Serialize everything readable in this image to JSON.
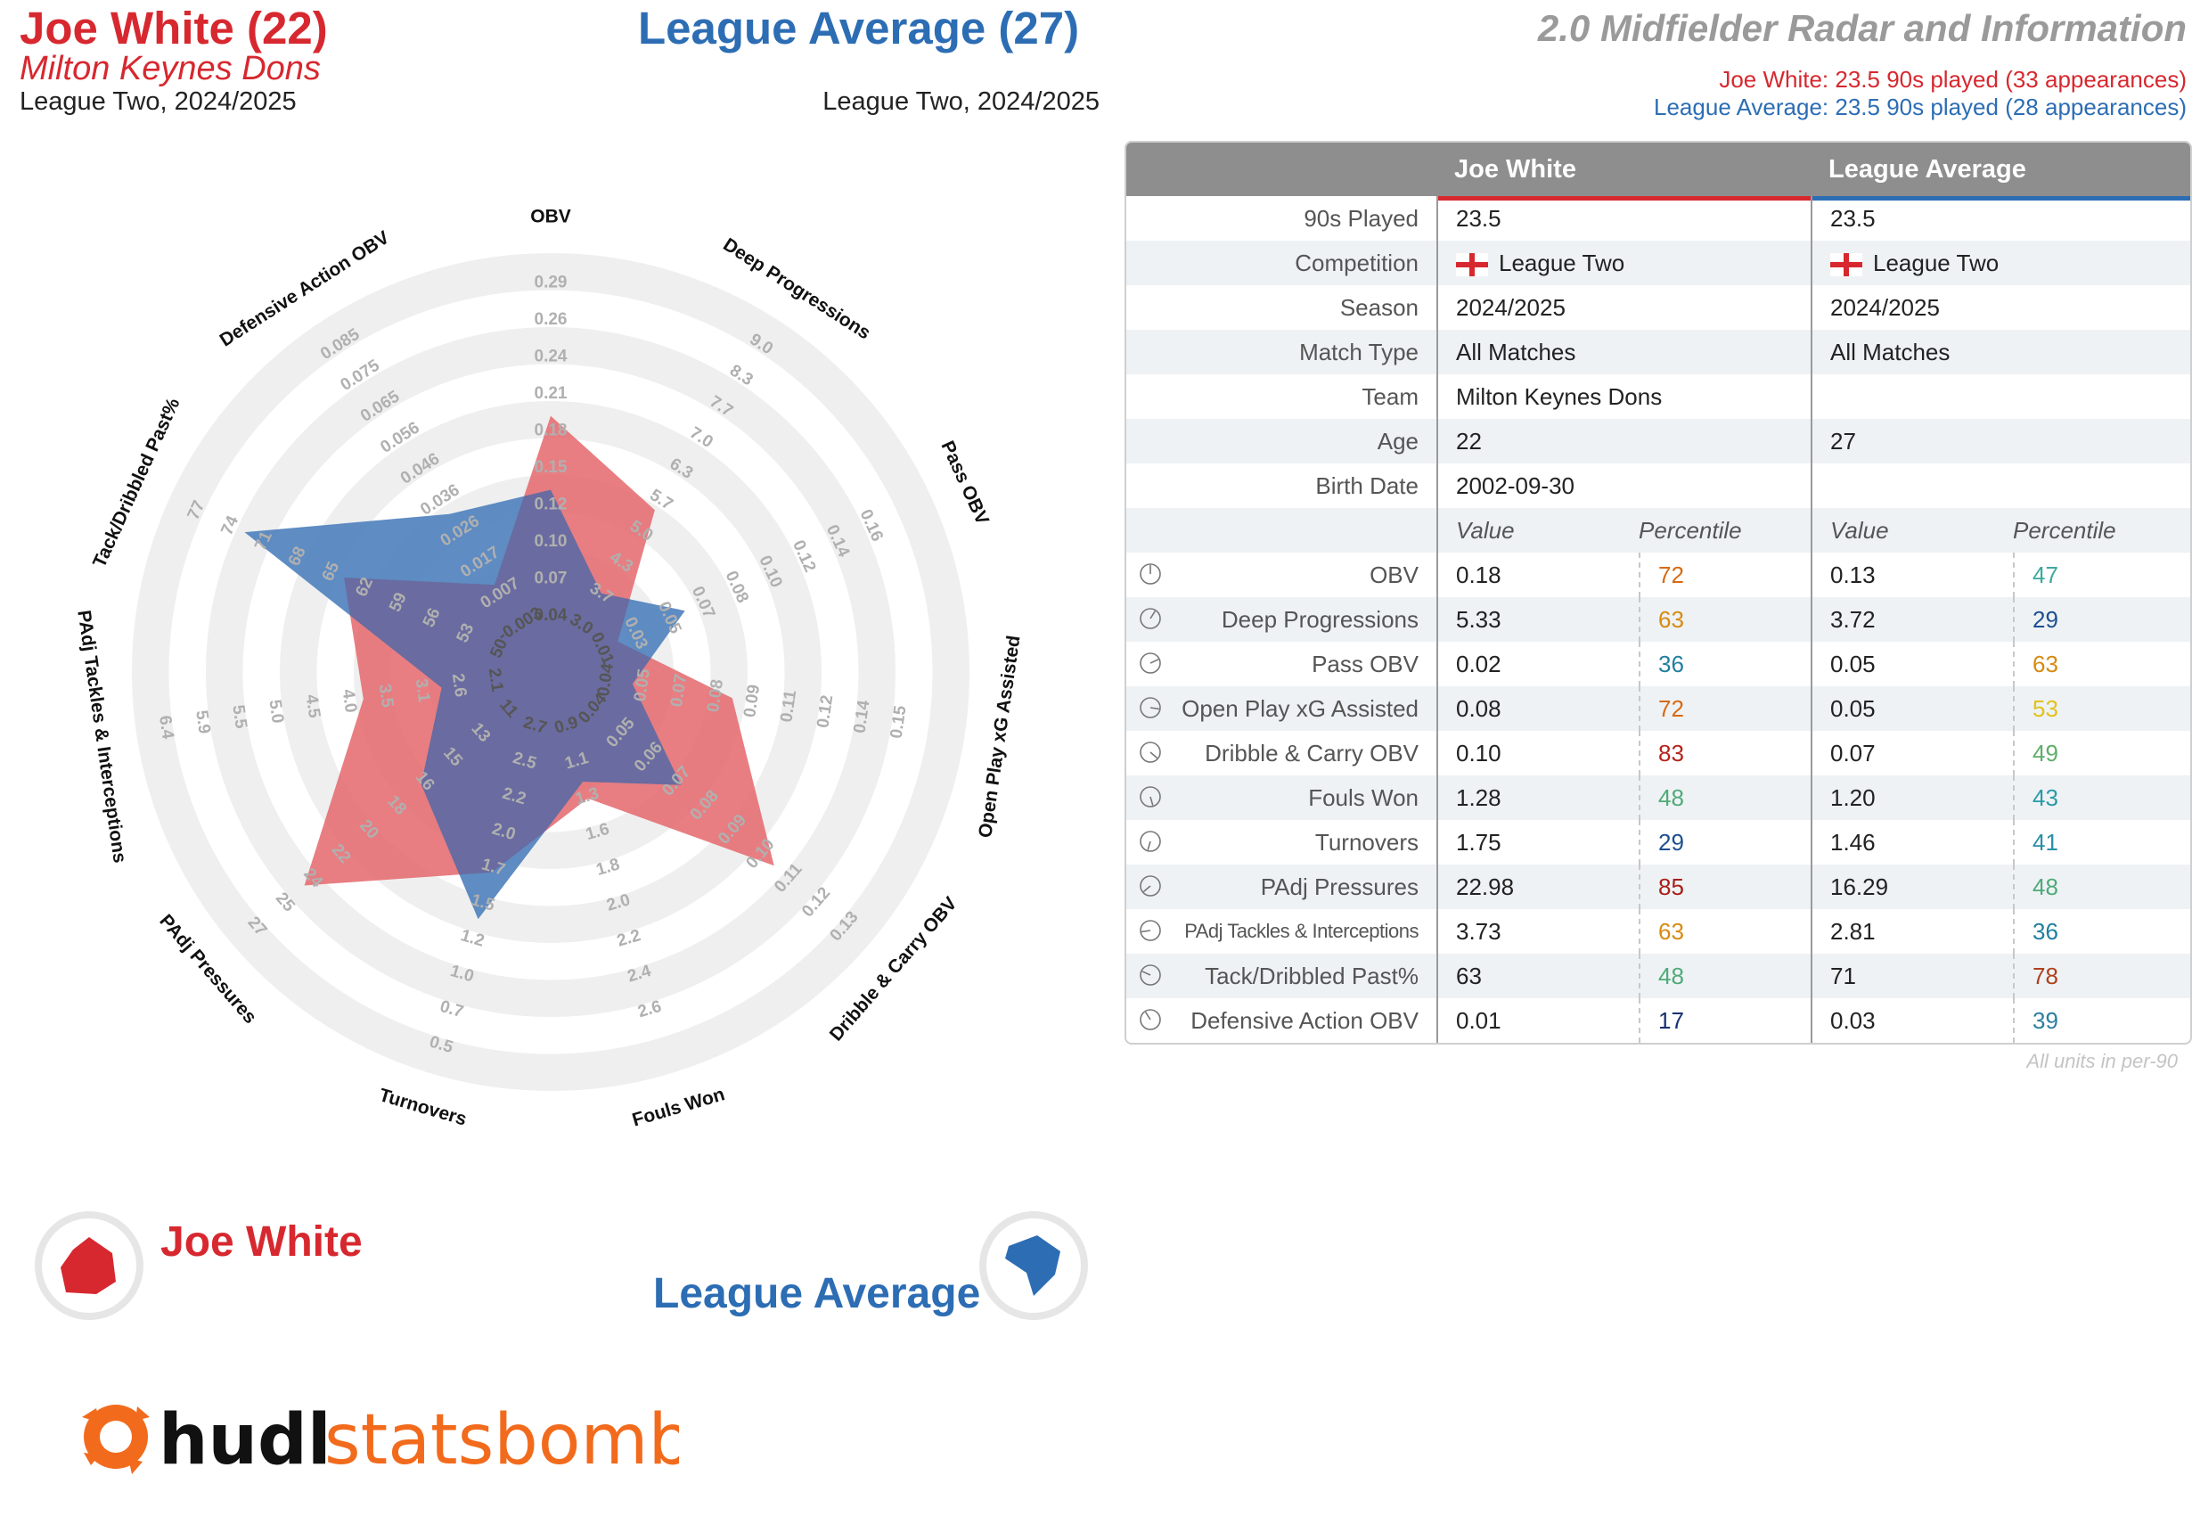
{
  "header": {
    "p1_name": "Joe White (22)",
    "p1_team": "Milton Keynes Dons",
    "p1_comp": "League Two, 2024/2025",
    "p2_name": "League Average (27)",
    "p2_comp": "League Two, 2024/2025",
    "title": "2.0 Midfielder Radar and Information",
    "p1_minutes": "Joe White: 23.5 90s played (33 appearances)",
    "p2_minutes": "League Average: 23.5 90s played (28 appearances)"
  },
  "colors": {
    "p1": "#d7282f",
    "p2": "#2c6db4",
    "p1_fill": "#e4676c",
    "p2_fill": "#4c7fbd",
    "overlap": "#6a6a9e",
    "ring": "#efefef"
  },
  "legend": {
    "p1": "Joe White",
    "p2": "League Average"
  },
  "logo": {
    "hudl": "hudl",
    "statsbomb": "statsbomb"
  },
  "table": {
    "columns": [
      "Joe White",
      "League Average"
    ],
    "info_rows": [
      {
        "label": "90s Played",
        "p1": "23.5",
        "p2": "23.5"
      },
      {
        "label": "Competition",
        "p1": "League Two",
        "p2": "League Two",
        "flag": true
      },
      {
        "label": "Season",
        "p1": "2024/2025",
        "p2": "2024/2025"
      },
      {
        "label": "Match Type",
        "p1": "All Matches",
        "p2": "All Matches"
      },
      {
        "label": "Team",
        "p1": "Milton Keynes Dons",
        "p2": ""
      },
      {
        "label": "Age",
        "p1": "22",
        "p2": "27"
      },
      {
        "label": "Birth Date",
        "p1": "2002-09-30",
        "p2": ""
      }
    ],
    "subheaders": {
      "value": "Value",
      "percentile": "Percentile"
    },
    "metric_rows": [
      {
        "label": "OBV",
        "p1v": "0.18",
        "p1p": "72",
        "p1c": "#d86a12",
        "p2v": "0.13",
        "p2p": "47",
        "p2c": "#3ba99c"
      },
      {
        "label": "Deep Progressions",
        "p1v": "5.33",
        "p1p": "63",
        "p1c": "#d88a10",
        "p2v": "3.72",
        "p2p": "29",
        "p2c": "#1d4f91"
      },
      {
        "label": "Pass OBV",
        "p1v": "0.02",
        "p1p": "36",
        "p1c": "#1f7fa0",
        "p2v": "0.05",
        "p2p": "63",
        "p2c": "#d88a10"
      },
      {
        "label": "Open Play xG Assisted",
        "p1v": "0.08",
        "p1p": "72",
        "p1c": "#d86a12",
        "p2v": "0.05",
        "p2p": "53",
        "p2c": "#e2c21a"
      },
      {
        "label": "Dribble & Carry OBV",
        "p1v": "0.10",
        "p1p": "83",
        "p1c": "#b5231b",
        "p2v": "0.07",
        "p2p": "49",
        "p2c": "#5fae6a"
      },
      {
        "label": "Fouls Won",
        "p1v": "1.28",
        "p1p": "48",
        "p1c": "#4faa78",
        "p2v": "1.20",
        "p2p": "43",
        "p2c": "#2a9aa8"
      },
      {
        "label": "Turnovers",
        "p1v": "1.75",
        "p1p": "29",
        "p1c": "#1d4f91",
        "p2v": "1.46",
        "p2p": "41",
        "p2c": "#2a8fa8"
      },
      {
        "label": "PAdj Pressures",
        "p1v": "22.98",
        "p1p": "85",
        "p1c": "#a81f18",
        "p2v": "16.29",
        "p2p": "48",
        "p2c": "#4faa78"
      },
      {
        "label": "PAdj Tackles & Interceptions",
        "p1v": "3.73",
        "p1p": "63",
        "p1c": "#d88a10",
        "p2v": "2.81",
        "p2p": "36",
        "p2c": "#1f7fa0"
      },
      {
        "label": "Tack/Dribbled Past%",
        "p1v": "63",
        "p1p": "48",
        "p1c": "#4faa78",
        "p2v": "71",
        "p2p": "78",
        "p2c": "#b0401a"
      },
      {
        "label": "Defensive Action OBV",
        "p1v": "0.01",
        "p1p": "17",
        "p1c": "#14306e",
        "p2v": "0.03",
        "p2p": "39",
        "p2c": "#2a7fa0"
      }
    ],
    "units_note": "All units in per-90"
  },
  "chart_data": {
    "type": "radar",
    "axes": [
      {
        "name": "OBV",
        "ticks": [
          "0.04",
          "0.07",
          "0.10",
          "0.12",
          "0.15",
          "0.18",
          "0.21",
          "0.24",
          "0.26",
          "0.29"
        ],
        "min": 0.04,
        "max": 0.29
      },
      {
        "name": "Deep Progressions",
        "ticks": [
          "3.0",
          "3.7",
          "4.3",
          "5.0",
          "5.7",
          "6.3",
          "7.0",
          "7.7",
          "8.3",
          "9.0"
        ],
        "min": 3.0,
        "max": 9.0
      },
      {
        "name": "Pass OBV",
        "ticks": [
          "0.01",
          "0.03",
          "0.05",
          "0.07",
          "0.08",
          "0.10",
          "0.12",
          "0.14",
          "0.16"
        ],
        "min": 0.01,
        "max": 0.16
      },
      {
        "name": "Open Play xG Assisted",
        "ticks": [
          "0.04",
          "0.05",
          "0.07",
          "0.08",
          "0.09",
          "0.11",
          "0.12",
          "0.14",
          "0.15"
        ],
        "min": 0.04,
        "max": 0.15
      },
      {
        "name": "Dribble & Carry OBV",
        "ticks": [
          "0.04",
          "0.05",
          "0.06",
          "0.07",
          "0.08",
          "0.09",
          "0.10",
          "0.11",
          "0.12",
          "0.13"
        ],
        "min": 0.04,
        "max": 0.13
      },
      {
        "name": "Fouls Won",
        "ticks": [
          "0.9",
          "1.1",
          "1.3",
          "1.6",
          "1.8",
          "2.0",
          "2.2",
          "2.4",
          "2.6"
        ],
        "min": 0.9,
        "max": 2.6
      },
      {
        "name": "Turnovers",
        "ticks": [
          "2.7",
          "2.5",
          "2.2",
          "2.0",
          "1.7",
          "1.5",
          "1.2",
          "1.0",
          "0.7",
          "0.5"
        ],
        "min": 2.7,
        "max": 0.5
      },
      {
        "name": "PAdj Pressures",
        "ticks": [
          "11",
          "13",
          "15",
          "16",
          "18",
          "20",
          "22",
          "24",
          "25",
          "27"
        ],
        "min": 11,
        "max": 27
      },
      {
        "name": "PAdj Tackles & Interceptions",
        "ticks": [
          "2.1",
          "2.6",
          "3.1",
          "3.5",
          "4.0",
          "4.5",
          "5.0",
          "5.5",
          "5.9",
          "6.4"
        ],
        "min": 2.1,
        "max": 6.4
      },
      {
        "name": "Tack/Dribbled Past%",
        "ticks": [
          "50",
          "53",
          "56",
          "59",
          "62",
          "65",
          "68",
          "71",
          "74",
          "77"
        ],
        "min": 50,
        "max": 77
      },
      {
        "name": "Defensive Action OBV",
        "ticks": [
          "-0.003",
          "0.007",
          "0.017",
          "0.026",
          "0.036",
          "0.046",
          "0.056",
          "0.065",
          "0.075",
          "0.085"
        ],
        "min": -0.003,
        "max": 0.085
      }
    ],
    "series": [
      {
        "name": "Joe White",
        "values": [
          0.18,
          5.33,
          0.02,
          0.08,
          0.1,
          1.28,
          1.75,
          22.98,
          3.73,
          63,
          0.01
        ]
      },
      {
        "name": "League Average",
        "values": [
          0.13,
          3.72,
          0.05,
          0.05,
          0.07,
          1.2,
          1.46,
          16.29,
          2.81,
          71,
          0.03
        ]
      }
    ]
  }
}
